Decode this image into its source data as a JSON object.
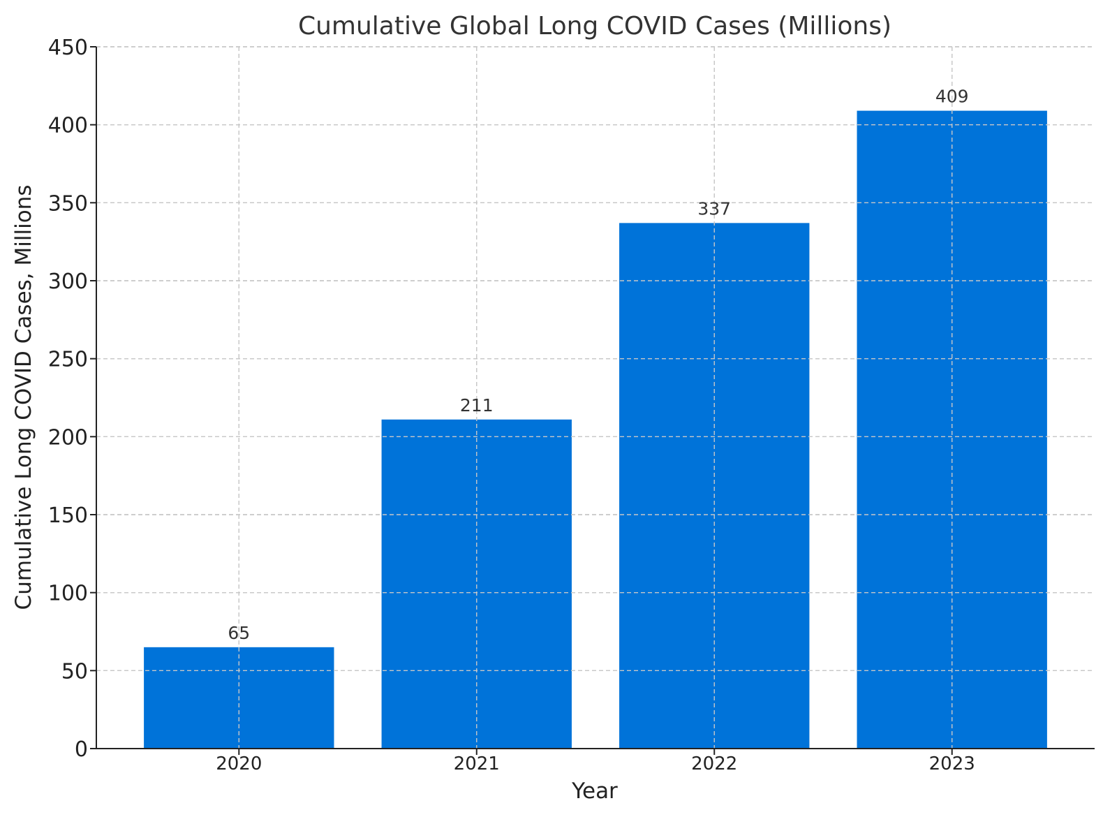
{
  "chart_data": {
    "type": "bar",
    "title": "Cumulative Global Long COVID Cases (Millions)",
    "xlabel": "Year",
    "ylabel": "Cumulative Long COVID Cases, Millions",
    "categories": [
      "2020",
      "2021",
      "2022",
      "2023"
    ],
    "values": [
      65,
      211,
      337,
      409
    ],
    "data_labels": [
      "65",
      "211",
      "337",
      "409"
    ],
    "ylim": [
      0,
      450
    ],
    "yticks": [
      0,
      50,
      100,
      150,
      200,
      250,
      300,
      350,
      400,
      450
    ],
    "grid": true,
    "bar_color": "#0073d9"
  }
}
